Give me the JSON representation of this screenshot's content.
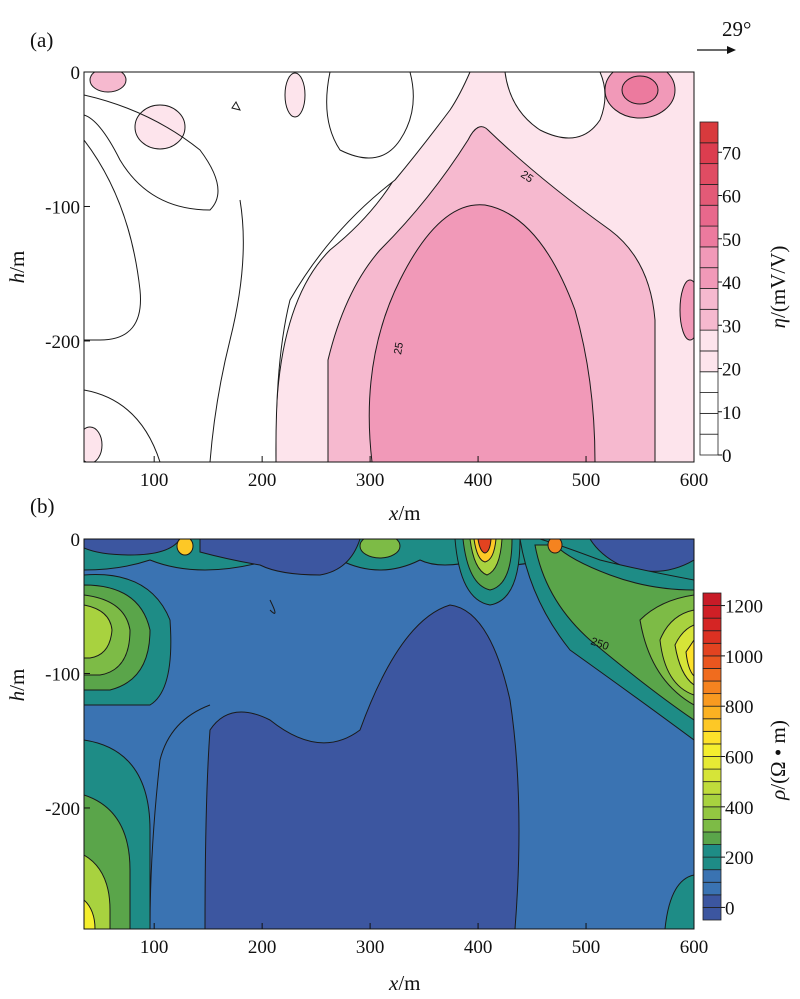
{
  "annotations": {
    "north_arrow_label": "29°"
  },
  "chart_data": [
    {
      "type": "heatmap",
      "panel_label": "(a)",
      "xlabel_var": "x",
      "xlabel_unit": "/m",
      "ylabel_var": "h",
      "ylabel_unit": "/m",
      "xlim": [
        35,
        600
      ],
      "ylim": [
        -290,
        0
      ],
      "xticks": [
        "100",
        "200",
        "300",
        "400",
        "500",
        "600"
      ],
      "xtick_values": [
        100,
        200,
        300,
        400,
        500,
        600
      ],
      "yticks": [
        "0",
        "-100",
        "-200"
      ],
      "ytick_values": [
        0,
        -100,
        -200
      ],
      "colorbar": {
        "label_var": "η",
        "label_unit": "/(mV/V)",
        "ticks": [
          "70",
          "60",
          "50",
          "40",
          "30",
          "20",
          "10",
          "0"
        ],
        "tick_values": [
          70,
          60,
          50,
          40,
          30,
          20,
          10,
          0
        ],
        "min": 0,
        "max": 77,
        "step": 5,
        "colors": [
          "#ffffff",
          "#ffffff",
          "#ffffff",
          "#ffffff",
          "#fde4ec",
          "#fde4ec",
          "#f6b9cf",
          "#f6b9cf",
          "#f199b8",
          "#f199b8",
          "#ec7a9e",
          "#e8688c",
          "#e35a77",
          "#e04c63",
          "#dc3d4f",
          "#d83a3d"
        ]
      },
      "contour_labels": [
        "25",
        "25"
      ],
      "regions": [
        {
          "level": 25,
          "description": "central anomaly",
          "x_center": 410,
          "h_top": -45
        },
        {
          "level": 30,
          "description": "core",
          "x_range": [
            370,
            510
          ],
          "h_top": -110
        }
      ]
    },
    {
      "type": "heatmap",
      "panel_label": "(b)",
      "xlabel_var": "x",
      "xlabel_unit": "/m",
      "ylabel_var": "h",
      "ylabel_unit": "/m",
      "xlim": [
        35,
        600
      ],
      "ylim": [
        -290,
        0
      ],
      "xticks": [
        "100",
        "200",
        "300",
        "400",
        "500",
        "600"
      ],
      "xtick_values": [
        100,
        200,
        300,
        400,
        500,
        600
      ],
      "yticks": [
        "0",
        "-100",
        "-200"
      ],
      "ytick_values": [
        0,
        -100,
        -200
      ],
      "colorbar": {
        "label_var": "ρ",
        "label_unit": "/(Ω • m)",
        "ticks": [
          "1200",
          "1000",
          "800",
          "600",
          "400",
          "200",
          "0"
        ],
        "tick_values": [
          1200,
          1000,
          800,
          600,
          400,
          200,
          0
        ],
        "min": -50,
        "max": 1250,
        "step": 50,
        "colors": [
          "#3c56a0",
          "#3c56a0",
          "#3a73b2",
          "#3a73b2",
          "#1e8c86",
          "#1e8c86",
          "#5aa54a",
          "#7dbb46",
          "#93c741",
          "#a8d23f",
          "#c0dc3b",
          "#d6e438",
          "#e6ea34",
          "#f4ee2e",
          "#fde12a",
          "#fdc826",
          "#fbb122",
          "#f99a20",
          "#f5831f",
          "#f06c1e",
          "#ea561f",
          "#e34320",
          "#dc3122",
          "#d52524",
          "#cf1f26",
          "#c81b27"
        ]
      },
      "contour_labels": [
        "250"
      ]
    }
  ]
}
